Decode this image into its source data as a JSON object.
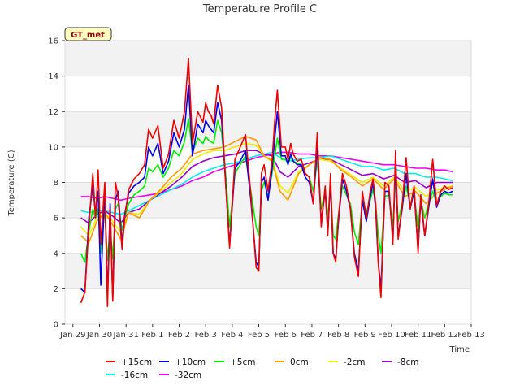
{
  "chart_data": {
    "type": "line",
    "title": "Temperature Profile C",
    "xlabel": "Time",
    "ylabel": "Temperature (C)",
    "ylim": [
      0,
      16
    ],
    "yticks": [
      0,
      2,
      4,
      6,
      8,
      10,
      12,
      14,
      16
    ],
    "xlim": [
      -0.3,
      15.0
    ],
    "xticks": [
      {
        "pos": 0,
        "label": "Jan 29"
      },
      {
        "pos": 1,
        "label": "Jan 30"
      },
      {
        "pos": 2,
        "label": "Jan 31"
      },
      {
        "pos": 3,
        "label": "Feb 1"
      },
      {
        "pos": 4,
        "label": "Feb 2"
      },
      {
        "pos": 5,
        "label": "Feb 3"
      },
      {
        "pos": 6,
        "label": "Feb 4"
      },
      {
        "pos": 7,
        "label": "Feb 5"
      },
      {
        "pos": 8,
        "label": "Feb 6"
      },
      {
        "pos": 9,
        "label": "Feb 7"
      },
      {
        "pos": 10,
        "label": "Feb 8"
      },
      {
        "pos": 11,
        "label": "Feb 9"
      },
      {
        "pos": 12,
        "label": "Feb 10"
      },
      {
        "pos": 13,
        "label": "Feb 11"
      },
      {
        "pos": 14,
        "label": "Feb 12"
      },
      {
        "pos": 15,
        "label": "Feb 13"
      }
    ],
    "annotation": "GT_met",
    "x_units": "days since Jan 29",
    "series": [
      {
        "name": "+15cm",
        "color": "#ee0000",
        "x": [
          0.3,
          0.45,
          0.6,
          0.75,
          0.85,
          0.95,
          1.05,
          1.2,
          1.3,
          1.4,
          1.5,
          1.6,
          1.7,
          1.85,
          1.95,
          2.1,
          2.3,
          2.5,
          2.7,
          2.85,
          3.0,
          3.2,
          3.4,
          3.6,
          3.8,
          4.0,
          4.2,
          4.35,
          4.5,
          4.7,
          4.9,
          5.0,
          5.1,
          5.2,
          5.3,
          5.45,
          5.6,
          5.75,
          5.9,
          6.1,
          6.3,
          6.5,
          6.7,
          6.9,
          7.0,
          7.1,
          7.2,
          7.35,
          7.5,
          7.6,
          7.7,
          7.85,
          8.0,
          8.1,
          8.2,
          8.3,
          8.45,
          8.6,
          8.75,
          8.9,
          9.05,
          9.2,
          9.35,
          9.5,
          9.6,
          9.7,
          9.8,
          9.9,
          10.0,
          10.15,
          10.3,
          10.45,
          10.6,
          10.75,
          10.9,
          11.05,
          11.2,
          11.3,
          11.4,
          11.5,
          11.6,
          11.75,
          11.9,
          12.05,
          12.15,
          12.25,
          12.4,
          12.55,
          12.7,
          12.85,
          13.0,
          13.1,
          13.25,
          13.4,
          13.55,
          13.7,
          13.85,
          14.0,
          14.15,
          14.3
        ],
        "y": [
          1.2,
          1.8,
          5.5,
          8.5,
          6.0,
          8.7,
          4.5,
          8.0,
          1.0,
          6.5,
          1.3,
          8.0,
          7.2,
          4.2,
          6.0,
          7.6,
          8.2,
          8.5,
          9.0,
          11.0,
          10.5,
          11.2,
          8.8,
          9.6,
          11.5,
          10.5,
          12.0,
          15.0,
          10.2,
          12.0,
          11.4,
          12.5,
          12.0,
          11.8,
          11.3,
          13.5,
          12.2,
          8.0,
          4.3,
          9.3,
          10.0,
          10.7,
          7.3,
          3.2,
          3.0,
          8.5,
          9.0,
          7.5,
          9.2,
          11.5,
          13.2,
          10.0,
          10.0,
          9.3,
          10.2,
          9.6,
          9.2,
          9.3,
          8.5,
          8.3,
          6.8,
          10.8,
          5.5,
          7.8,
          5.0,
          8.5,
          4.0,
          3.5,
          6.0,
          8.5,
          7.8,
          6.5,
          3.8,
          2.7,
          7.5,
          6.0,
          7.5,
          8.2,
          6.8,
          3.5,
          1.5,
          8.0,
          7.8,
          4.5,
          9.8,
          4.8,
          6.7,
          9.4,
          6.5,
          7.8,
          4.0,
          7.3,
          5.0,
          6.8,
          9.3,
          6.7,
          7.5,
          7.8,
          7.6,
          7.7
        ]
      },
      {
        "name": "+10cm",
        "color": "#0000ee",
        "x": [
          0.3,
          0.45,
          0.6,
          0.75,
          0.85,
          0.95,
          1.05,
          1.2,
          1.3,
          1.4,
          1.5,
          1.6,
          1.7,
          1.85,
          1.95,
          2.1,
          2.3,
          2.5,
          2.7,
          2.85,
          3.0,
          3.2,
          3.4,
          3.6,
          3.8,
          4.0,
          4.2,
          4.35,
          4.5,
          4.7,
          4.9,
          5.0,
          5.1,
          5.2,
          5.3,
          5.45,
          5.6,
          5.75,
          5.9,
          6.1,
          6.3,
          6.5,
          6.7,
          6.9,
          7.0,
          7.1,
          7.2,
          7.35,
          7.5,
          7.6,
          7.7,
          7.85,
          8.0,
          8.1,
          8.2,
          8.3,
          8.45,
          8.6,
          8.75,
          8.9,
          9.05,
          9.2,
          9.35,
          9.5,
          9.6,
          9.7,
          9.8,
          9.9,
          10.0,
          10.15,
          10.3,
          10.45,
          10.6,
          10.75,
          10.9,
          11.05,
          11.2,
          11.3,
          11.4,
          11.5,
          11.6,
          11.75,
          11.9,
          12.05,
          12.15,
          12.25,
          12.4,
          12.55,
          12.7,
          12.85,
          13.0,
          13.1,
          13.25,
          13.4,
          13.55,
          13.7,
          13.85,
          14.0,
          14.15,
          14.3
        ],
        "y": [
          2.0,
          1.8,
          6.0,
          7.8,
          6.2,
          7.5,
          2.2,
          7.5,
          1.5,
          6.8,
          1.5,
          7.0,
          7.5,
          4.5,
          6.2,
          7.4,
          7.8,
          8.0,
          8.3,
          10.0,
          9.5,
          10.2,
          8.5,
          9.2,
          10.8,
          10.0,
          11.0,
          13.5,
          9.5,
          11.3,
          10.8,
          11.5,
          11.2,
          11.0,
          10.8,
          12.5,
          11.5,
          8.0,
          4.5,
          8.8,
          9.2,
          9.8,
          7.0,
          3.5,
          3.2,
          8.0,
          8.3,
          7.0,
          8.8,
          10.5,
          12.0,
          9.5,
          9.5,
          9.0,
          9.6,
          9.2,
          9.0,
          9.0,
          8.3,
          8.0,
          6.8,
          10.0,
          5.8,
          7.5,
          5.2,
          8.0,
          4.0,
          3.7,
          5.8,
          8.2,
          7.5,
          6.5,
          4.0,
          3.0,
          7.0,
          5.8,
          7.2,
          8.0,
          6.5,
          3.5,
          2.0,
          7.5,
          7.5,
          4.8,
          9.0,
          5.0,
          6.5,
          8.5,
          6.5,
          7.5,
          4.2,
          7.0,
          5.0,
          6.6,
          8.2,
          6.6,
          7.3,
          7.5,
          7.4,
          7.5
        ]
      },
      {
        "name": "+5cm",
        "color": "#00ee00",
        "x": [
          0.3,
          0.45,
          0.6,
          0.75,
          0.85,
          0.95,
          1.05,
          1.2,
          1.3,
          1.4,
          1.5,
          1.6,
          1.7,
          1.85,
          1.95,
          2.1,
          2.3,
          2.5,
          2.7,
          2.85,
          3.0,
          3.2,
          3.4,
          3.6,
          3.8,
          4.0,
          4.2,
          4.35,
          4.5,
          4.7,
          4.9,
          5.0,
          5.1,
          5.2,
          5.3,
          5.45,
          5.6,
          5.75,
          5.9,
          6.1,
          6.3,
          6.5,
          6.7,
          6.9,
          7.0,
          7.1,
          7.2,
          7.35,
          7.5,
          7.6,
          7.7,
          7.85,
          8.0,
          8.1,
          8.2,
          8.3,
          8.45,
          8.6,
          8.75,
          8.9,
          9.05,
          9.2,
          9.35,
          9.5,
          9.6,
          9.7,
          9.8,
          9.9,
          10.0,
          10.15,
          10.3,
          10.45,
          10.6,
          10.75,
          10.9,
          11.05,
          11.2,
          11.3,
          11.4,
          11.5,
          11.6,
          11.75,
          11.9,
          12.05,
          12.15,
          12.25,
          12.4,
          12.55,
          12.7,
          12.85,
          13.0,
          13.1,
          13.25,
          13.4,
          13.55,
          13.7,
          13.85,
          14.0,
          14.15,
          14.3
        ],
        "y": [
          4.0,
          3.5,
          5.2,
          6.5,
          6.0,
          6.5,
          4.0,
          6.5,
          3.6,
          5.5,
          3.7,
          6.5,
          6.8,
          5.3,
          6.0,
          6.8,
          7.3,
          7.5,
          7.8,
          8.8,
          8.6,
          9.0,
          8.3,
          8.8,
          9.8,
          9.5,
          10.3,
          11.6,
          9.7,
          10.5,
          10.2,
          10.6,
          10.4,
          10.3,
          10.2,
          11.5,
          10.8,
          8.5,
          5.5,
          8.5,
          9.0,
          9.5,
          7.5,
          5.5,
          5.0,
          7.5,
          8.0,
          7.2,
          8.5,
          9.5,
          10.5,
          9.3,
          9.3,
          9.1,
          9.4,
          9.2,
          9.1,
          9.0,
          8.5,
          8.3,
          7.5,
          9.2,
          6.5,
          7.5,
          6.0,
          7.8,
          5.0,
          4.8,
          6.2,
          7.8,
          7.3,
          6.8,
          5.2,
          4.5,
          7.0,
          6.3,
          7.0,
          7.6,
          6.8,
          5.0,
          4.0,
          7.2,
          7.3,
          5.5,
          8.3,
          5.8,
          6.8,
          7.8,
          6.8,
          7.3,
          5.5,
          7.0,
          6.0,
          6.8,
          7.5,
          6.8,
          7.2,
          7.4,
          7.3,
          7.3
        ]
      },
      {
        "name": "0cm",
        "color": "#ff9900",
        "x": [
          0.3,
          0.6,
          0.9,
          1.2,
          1.5,
          1.8,
          2.1,
          2.5,
          2.9,
          3.3,
          3.7,
          4.1,
          4.5,
          4.9,
          5.3,
          5.7,
          6.1,
          6.5,
          6.9,
          7.2,
          7.5,
          7.8,
          8.1,
          8.5,
          8.9,
          9.3,
          9.7,
          10.1,
          10.5,
          10.9,
          11.3,
          11.7,
          12.1,
          12.5,
          12.9,
          13.3,
          13.7,
          14.0,
          14.3
        ],
        "y": [
          5.0,
          4.6,
          5.8,
          6.3,
          5.6,
          4.8,
          6.3,
          6.0,
          7.0,
          7.6,
          8.3,
          8.8,
          9.6,
          9.8,
          9.9,
          10.0,
          10.3,
          10.6,
          10.4,
          9.5,
          9.2,
          7.5,
          7.0,
          8.5,
          9.0,
          9.4,
          9.3,
          8.7,
          8.3,
          7.8,
          8.2,
          7.6,
          8.2,
          7.2,
          7.5,
          6.8,
          7.4,
          7.6,
          7.8
        ]
      },
      {
        "name": "-2cm",
        "color": "#eeee00",
        "x": [
          0.3,
          0.6,
          0.9,
          1.2,
          1.5,
          1.8,
          2.1,
          2.5,
          2.9,
          3.3,
          3.7,
          4.1,
          4.5,
          4.9,
          5.3,
          5.7,
          6.1,
          6.5,
          6.9,
          7.2,
          7.5,
          7.8,
          8.1,
          8.5,
          8.9,
          9.3,
          9.7,
          10.1,
          10.5,
          10.9,
          11.3,
          11.7,
          12.1,
          12.5,
          12.9,
          13.3,
          13.7,
          14.0,
          14.3
        ],
        "y": [
          5.5,
          5.0,
          6.0,
          6.3,
          5.8,
          5.2,
          6.3,
          6.2,
          7.0,
          7.5,
          8.0,
          8.5,
          9.3,
          9.6,
          9.8,
          9.8,
          10.0,
          10.2,
          10.1,
          9.5,
          9.3,
          7.8,
          7.4,
          8.6,
          9.0,
          9.3,
          9.2,
          8.8,
          8.4,
          8.0,
          8.3,
          7.8,
          8.3,
          7.5,
          7.7,
          7.2,
          7.6,
          7.7,
          7.8
        ]
      },
      {
        "name": "-8cm",
        "color": "#9900cc",
        "x": [
          0.3,
          0.6,
          0.9,
          1.2,
          1.5,
          1.8,
          2.1,
          2.5,
          2.9,
          3.3,
          3.7,
          4.1,
          4.5,
          4.9,
          5.3,
          5.7,
          6.1,
          6.5,
          6.9,
          7.2,
          7.5,
          7.8,
          8.1,
          8.5,
          8.9,
          9.3,
          9.7,
          10.1,
          10.5,
          10.9,
          11.3,
          11.7,
          12.1,
          12.5,
          12.9,
          13.3,
          13.7,
          14.0,
          14.3
        ],
        "y": [
          6.0,
          5.7,
          6.2,
          6.4,
          6.1,
          5.7,
          6.3,
          6.5,
          7.0,
          7.4,
          7.8,
          8.3,
          8.9,
          9.2,
          9.4,
          9.5,
          9.6,
          9.8,
          9.8,
          9.6,
          9.5,
          8.6,
          8.3,
          8.9,
          9.1,
          9.3,
          9.3,
          9.0,
          8.7,
          8.4,
          8.5,
          8.2,
          8.4,
          8.0,
          8.1,
          7.7,
          8.0,
          8.0,
          8.0
        ]
      },
      {
        "name": "-16cm",
        "color": "#00eeee",
        "x": [
          0.3,
          0.6,
          0.9,
          1.2,
          1.5,
          1.8,
          2.1,
          2.5,
          2.9,
          3.3,
          3.7,
          4.1,
          4.5,
          4.9,
          5.3,
          5.7,
          6.1,
          6.5,
          6.9,
          7.2,
          7.5,
          7.8,
          8.1,
          8.5,
          8.9,
          9.3,
          9.7,
          10.1,
          10.5,
          10.9,
          11.3,
          11.7,
          12.1,
          12.5,
          12.9,
          13.3,
          13.7,
          14.0,
          14.3
        ],
        "y": [
          6.4,
          6.3,
          6.4,
          6.4,
          6.3,
          6.2,
          6.4,
          6.7,
          7.0,
          7.3,
          7.6,
          7.9,
          8.3,
          8.6,
          8.8,
          9.0,
          9.1,
          9.3,
          9.5,
          9.6,
          9.7,
          9.4,
          9.2,
          9.3,
          9.4,
          9.4,
          9.5,
          9.3,
          9.1,
          8.9,
          8.9,
          8.7,
          8.8,
          8.5,
          8.5,
          8.3,
          8.3,
          8.2,
          8.1
        ]
      },
      {
        "name": "-32cm",
        "color": "#ee00ee",
        "x": [
          0.3,
          0.6,
          0.9,
          1.2,
          1.5,
          1.8,
          2.1,
          2.5,
          2.9,
          3.3,
          3.7,
          4.1,
          4.5,
          4.9,
          5.3,
          5.7,
          6.1,
          6.5,
          6.9,
          7.2,
          7.5,
          7.8,
          8.1,
          8.5,
          8.9,
          9.3,
          9.7,
          10.1,
          10.5,
          10.9,
          11.3,
          11.7,
          12.1,
          12.5,
          12.9,
          13.3,
          13.7,
          14.0,
          14.3
        ],
        "y": [
          7.2,
          7.2,
          7.1,
          7.2,
          7.1,
          7.0,
          7.1,
          7.2,
          7.3,
          7.4,
          7.6,
          7.8,
          8.1,
          8.3,
          8.6,
          8.8,
          9.0,
          9.2,
          9.4,
          9.5,
          9.6,
          9.7,
          9.7,
          9.6,
          9.6,
          9.5,
          9.5,
          9.4,
          9.3,
          9.2,
          9.1,
          9.0,
          9.0,
          8.9,
          8.8,
          8.8,
          8.7,
          8.7,
          8.6
        ]
      }
    ]
  }
}
